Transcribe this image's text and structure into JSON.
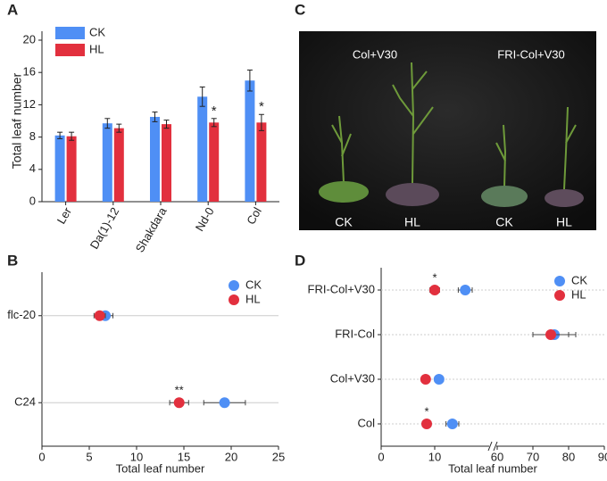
{
  "chart_data": [
    {
      "type": "bar",
      "panel_label": "A",
      "y_label": "Total leaf number",
      "categories": [
        "Ler",
        "Da(1)-12",
        "Shakdara",
        "Nd-0",
        "Col"
      ],
      "series": [
        {
          "name": "CK",
          "color": "#4f8ff5",
          "values": [
            8.2,
            9.7,
            10.5,
            13.0,
            15.0
          ],
          "errors": [
            0.4,
            0.6,
            0.6,
            1.2,
            1.3
          ]
        },
        {
          "name": "HL",
          "color": "#e2303e",
          "values": [
            8.1,
            9.1,
            9.6,
            9.8,
            9.8
          ],
          "errors": [
            0.5,
            0.5,
            0.5,
            0.5,
            1.0
          ],
          "significance": [
            null,
            null,
            null,
            "*",
            "*"
          ]
        }
      ],
      "ylim": [
        0,
        20
      ],
      "yticks": [
        0,
        4,
        8,
        12,
        16,
        20
      ],
      "legend": "top-left"
    },
    {
      "type": "dot",
      "panel_label": "B",
      "x_label": "Total leaf number",
      "categories": [
        "flc-20",
        "C24"
      ],
      "series": [
        {
          "name": "CK",
          "color": "#4f8ff5",
          "values": [
            6.7,
            19.3
          ],
          "errors": [
            0.8,
            2.2
          ]
        },
        {
          "name": "HL",
          "color": "#e2303e",
          "values": [
            6.1,
            14.5
          ],
          "errors": [
            0.6,
            1.0
          ],
          "significance": [
            null,
            "**"
          ]
        }
      ],
      "xlim": [
        0,
        25
      ],
      "xticks": [
        0,
        5,
        10,
        15,
        20,
        25
      ],
      "grid": "solid",
      "legend": "top-right"
    },
    {
      "type": "dot",
      "panel_label": "D",
      "x_label": "Total leaf number",
      "categories": [
        "FRI-Col+V30",
        "FRI-Col",
        "Col+V30",
        "Col"
      ],
      "series": [
        {
          "name": "CK",
          "color": "#4f8ff5",
          "values": [
            15.7,
            76,
            10.8,
            13.3
          ],
          "errors": [
            1.3,
            6,
            0.8,
            1.2
          ]
        },
        {
          "name": "HL",
          "color": "#e2303e",
          "values": [
            10,
            75,
            8.3,
            8.5
          ],
          "errors": [
            0.9,
            5,
            0.6,
            0.8
          ],
          "significance": [
            "*",
            null,
            null,
            "*"
          ]
        }
      ],
      "xlim": [
        0,
        90
      ],
      "x_break": [
        20,
        60
      ],
      "xticks": [
        0,
        10,
        60,
        70,
        80,
        90
      ],
      "grid": "dotted",
      "legend": "top-right"
    }
  ],
  "photo": {
    "panel_label": "C",
    "group_labels": [
      "Col+V30",
      "FRI-Col+V30"
    ],
    "plant_labels": [
      "CK",
      "HL",
      "CK",
      "HL"
    ]
  }
}
